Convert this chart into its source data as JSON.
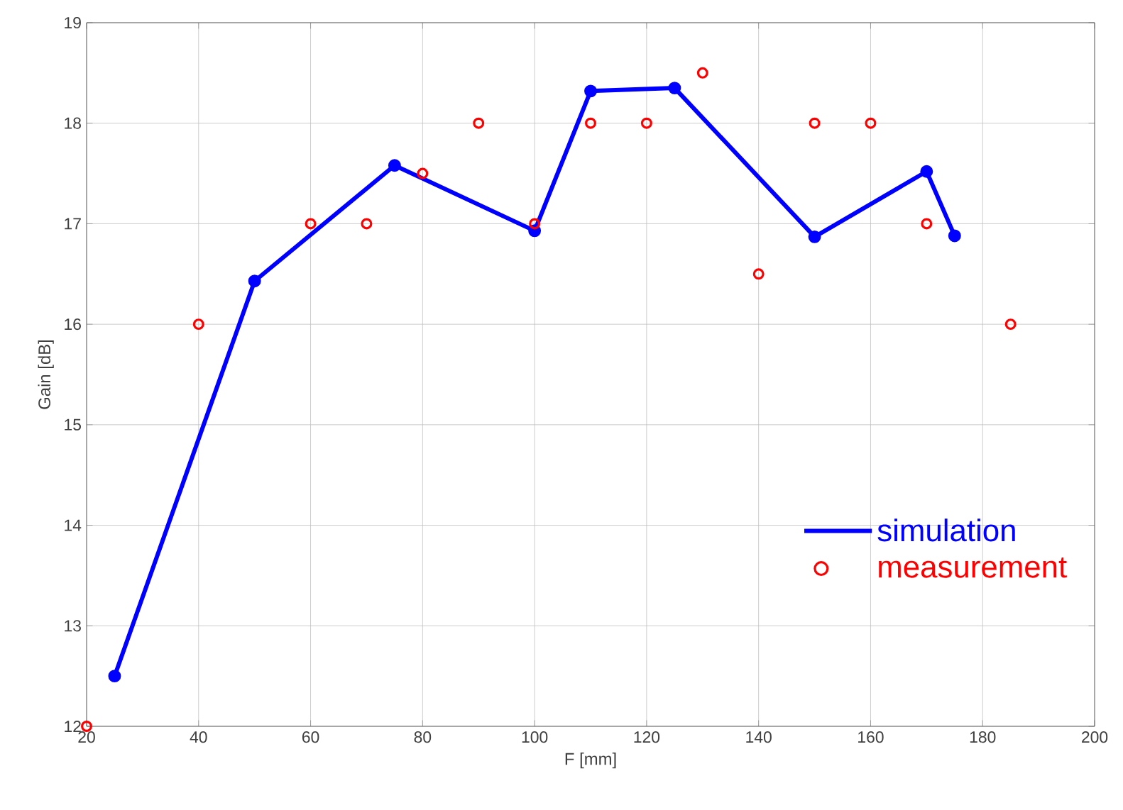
{
  "chart_data": {
    "type": "line",
    "xlabel": "F [mm]",
    "ylabel": "Gain [dB]",
    "xlim": [
      20,
      200
    ],
    "ylim": [
      12,
      19
    ],
    "xticks": [
      20,
      40,
      60,
      80,
      100,
      120,
      140,
      160,
      180,
      200
    ],
    "yticks": [
      12,
      13,
      14,
      15,
      16,
      17,
      18,
      19
    ],
    "grid": true,
    "legend": "bottom right",
    "marker": "circle",
    "series": [
      {
        "name": "simulation",
        "color": "#0000ff",
        "x": [
          25,
          50,
          75,
          100,
          110,
          125,
          150,
          170,
          175
        ],
        "values": [
          12.5,
          16.43,
          17.58,
          16.93,
          18.32,
          18.35,
          16.87,
          17.52,
          16.88
        ]
      },
      {
        "name": "measurement",
        "type": "scatter",
        "color": "#ff0000",
        "x": [
          20,
          40,
          60,
          70,
          80,
          90,
          100,
          110,
          120,
          130,
          140,
          150,
          160,
          170,
          185
        ],
        "values": [
          12,
          16,
          17,
          17,
          17.5,
          18,
          17,
          18,
          18,
          18.5,
          16.5,
          18,
          18,
          17,
          16
        ]
      }
    ]
  }
}
